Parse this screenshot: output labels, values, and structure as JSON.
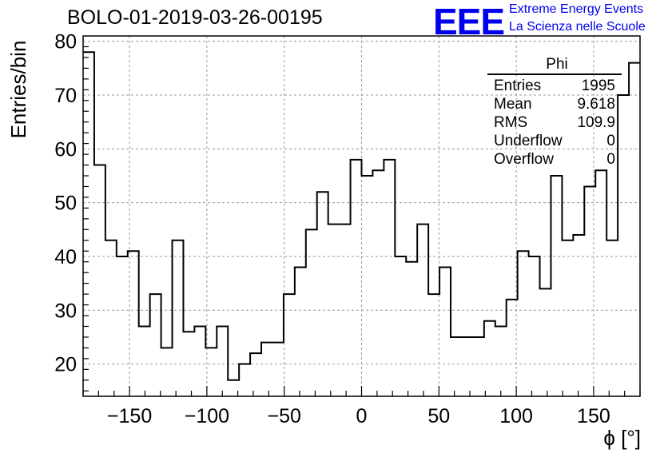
{
  "page": {
    "title": "BOLO-01-2019-03-26-00195",
    "logo_text": "EEE",
    "logo_line1": "Extreme Energy Events",
    "logo_line2": "La Scienza nelle Scuole"
  },
  "stats": {
    "title": "Phi",
    "rows": [
      {
        "label": "Entries",
        "value": "1995"
      },
      {
        "label": "Mean",
        "value": "9.618"
      },
      {
        "label": "RMS",
        "value": "109.9"
      },
      {
        "label": "Underflow",
        "value": "0"
      },
      {
        "label": "Overflow",
        "value": "0"
      }
    ]
  },
  "chart_data": {
    "type": "histogram",
    "title": "BOLO-01-2019-03-26-00195",
    "xlabel": "ϕ [°]",
    "ylabel": "Entries/bin",
    "xlim": [
      -180,
      180
    ],
    "ylim": [
      14,
      81
    ],
    "bin_width": 7.2,
    "x_ticks": [
      -150,
      -100,
      -50,
      0,
      50,
      100,
      150
    ],
    "x_tick_labels": [
      "−150",
      "−100",
      "−50",
      "0",
      "50",
      "100",
      "150"
    ],
    "y_ticks": [
      20,
      30,
      40,
      50,
      60,
      70,
      80
    ],
    "y_tick_labels": [
      "20",
      "30",
      "40",
      "50",
      "60",
      "70",
      "80"
    ],
    "grid": true,
    "values": [
      78,
      57,
      43,
      40,
      41,
      27,
      33,
      23,
      43,
      26,
      27,
      23,
      27,
      17,
      20,
      22,
      24,
      24,
      33,
      38,
      45,
      52,
      46,
      46,
      58,
      55,
      56,
      58,
      40,
      39,
      46,
      33,
      38,
      25,
      25,
      25,
      28,
      27,
      32,
      41,
      40,
      34,
      55,
      43,
      44,
      53,
      56,
      43,
      70,
      76
    ]
  }
}
